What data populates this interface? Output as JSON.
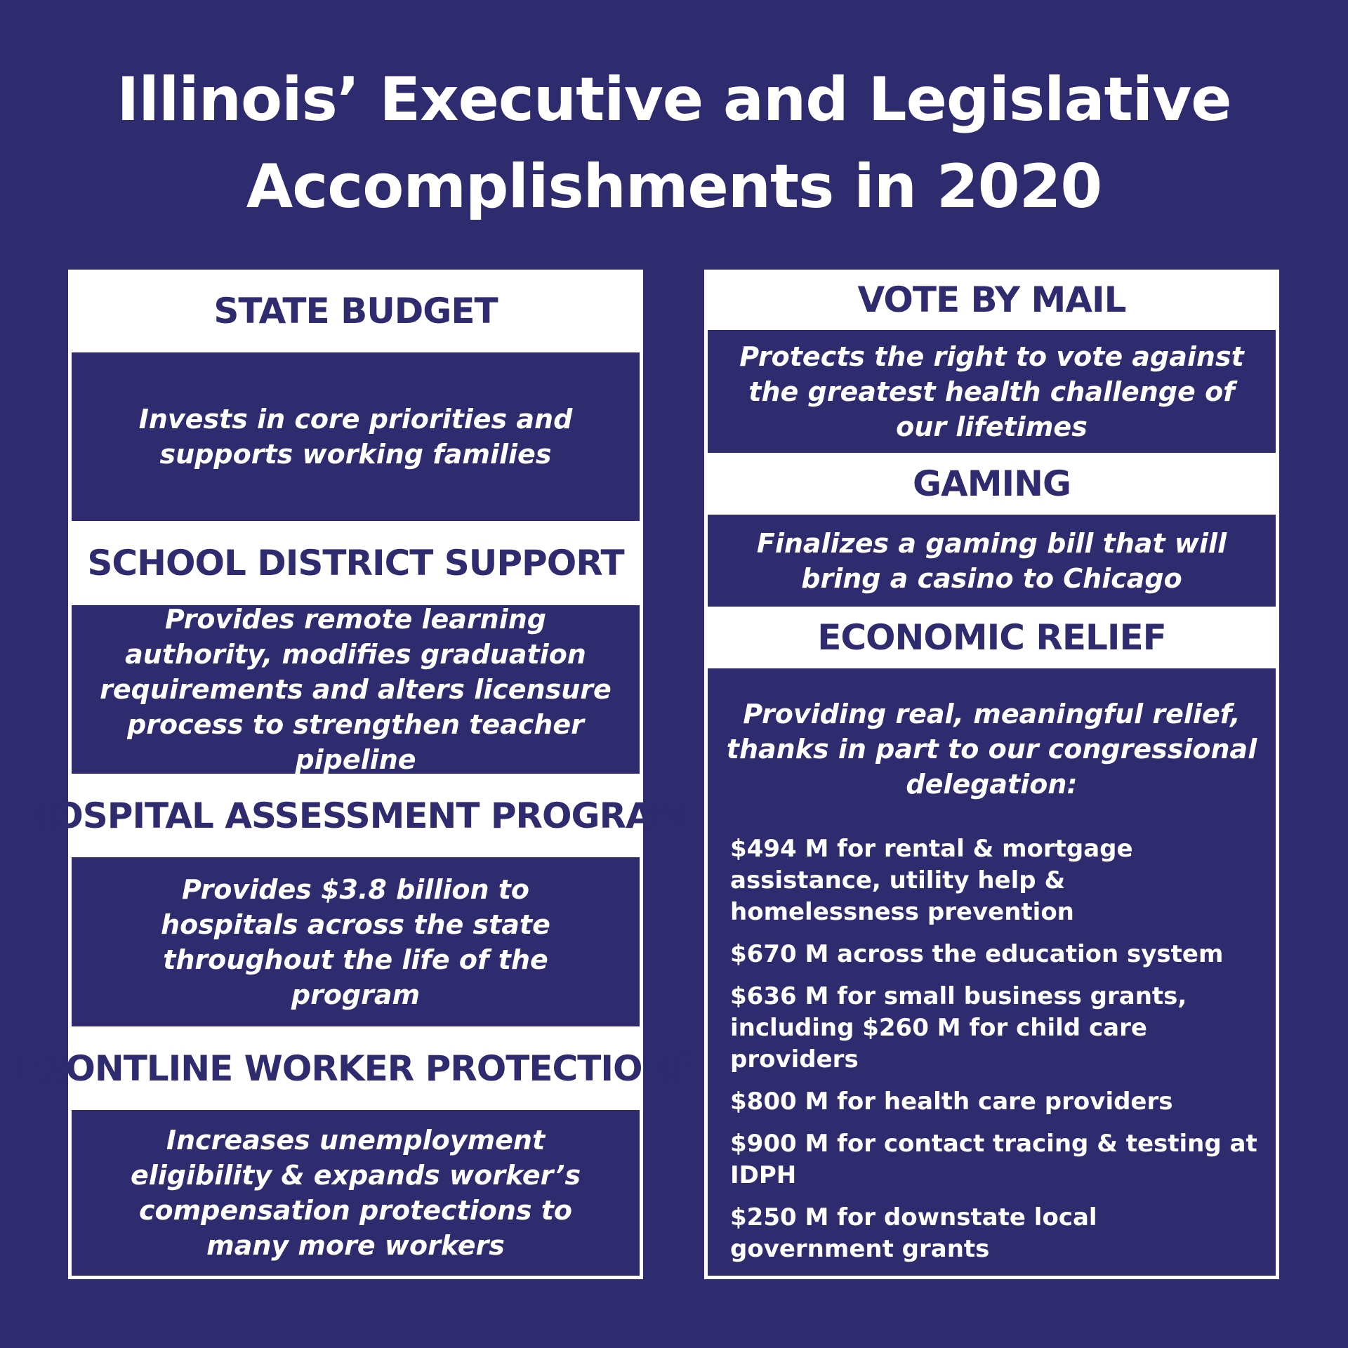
{
  "header": {
    "title": "Illinois’ Executive and Legislative Accomplishments in 2020"
  },
  "columns": [
    {
      "sections": [
        {
          "heading": "STATE BUDGET",
          "text": "Invests in core priorities and supports working families"
        },
        {
          "heading": "SCHOOL DISTRICT SUPPORT",
          "text": "Provides remote learning authority, modifies graduation requirements and alters licensure process to strengthen teacher pipeline"
        },
        {
          "heading": "HOSPITAL ASSESSMENT PROGRAM",
          "text": "Provides $3.8 billion to hospitals across the state throughout the life of the program"
        },
        {
          "heading": "FRONTLINE WORKER PROTECTIONS",
          "text": "Increases unemployment eligibility & expands worker’s compensation protections to many more workers"
        }
      ]
    },
    {
      "sections": [
        {
          "heading": "VOTE BY MAIL",
          "text": "Protects the right to vote against the greatest health challenge of our lifetimes"
        },
        {
          "heading": "GAMING",
          "text": "Finalizes a gaming bill that will bring a casino to Chicago"
        },
        {
          "heading": "ECONOMIC RELIEF",
          "text": "Providing real, meaningful relief, thanks in part to our congressional delegation:",
          "items": [
            "$494 M for rental & mortgage assistance, utility help & homelessness prevention",
            "$670 M across the education system",
            "$636 M for small business grants, including $260 M for child care providers",
            "$800 M for health care providers",
            "$900 M for contact tracing & testing at IDPH",
            "$250 M for downstate local government grants"
          ]
        }
      ]
    }
  ]
}
